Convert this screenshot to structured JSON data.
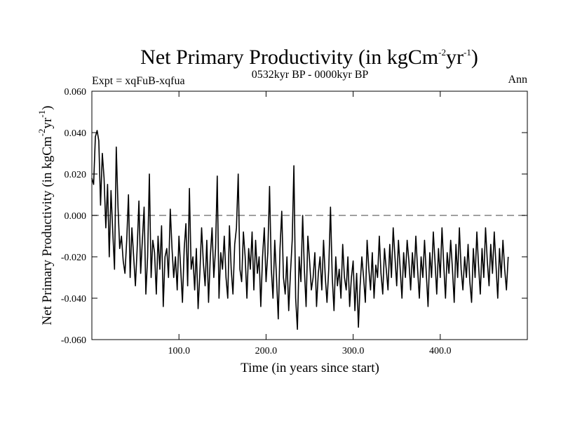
{
  "chart_data": {
    "type": "line",
    "title": {
      "main": "Net Primary Productivity (in kgCm",
      "sup1": "-2",
      "mid": "yr",
      "sup2": "-1",
      "end": ")"
    },
    "left_label": "Expt = xqFuB-xqfua",
    "center_label": "0532kyr BP - 0000kyr BP",
    "right_label": "Ann",
    "xlabel": "Time (in years since start)",
    "ylabel": {
      "main": "Net Primary Productivity (in kgCm",
      "sup1": "-2",
      "mid": "yr",
      "sup2": "-1",
      "end": ")"
    },
    "xlim": [
      0,
      500
    ],
    "ylim": [
      -0.06,
      0.06
    ],
    "xticks": [
      100,
      200,
      300,
      400
    ],
    "xtick_labels": [
      "100.0",
      "200.0",
      "300.0",
      "400.0"
    ],
    "yticks": [
      0.06,
      0.04,
      0.02,
      0.0,
      -0.02,
      -0.04,
      -0.06
    ],
    "ytick_labels": [
      "0.060",
      "0.040",
      "0.020",
      "0.000",
      "-0.020",
      "-0.040",
      "-0.060"
    ],
    "reference_line": 0.0,
    "series": [
      {
        "name": "Net Primary Productivity",
        "x_start": 0,
        "x_step": 2,
        "values": [
          0.018,
          0.015,
          0.038,
          0.041,
          0.036,
          0.005,
          0.03,
          0.018,
          -0.006,
          0.015,
          -0.02,
          0.012,
          -0.008,
          -0.026,
          0.033,
          0.004,
          -0.016,
          -0.01,
          -0.022,
          -0.028,
          -0.012,
          0.01,
          -0.03,
          -0.006,
          -0.02,
          -0.034,
          -0.016,
          0.007,
          -0.028,
          -0.012,
          0.004,
          -0.038,
          -0.02,
          0.02,
          -0.03,
          -0.012,
          -0.018,
          -0.038,
          -0.01,
          -0.026,
          -0.005,
          -0.044,
          -0.02,
          -0.016,
          -0.03,
          0.003,
          -0.016,
          -0.03,
          -0.02,
          -0.036,
          -0.01,
          -0.026,
          -0.042,
          -0.016,
          -0.004,
          -0.034,
          0.013,
          -0.026,
          -0.02,
          -0.036,
          -0.016,
          -0.045,
          -0.028,
          -0.006,
          -0.023,
          -0.034,
          -0.012,
          -0.042,
          -0.02,
          -0.006,
          -0.03,
          -0.016,
          0.019,
          -0.04,
          -0.018,
          -0.026,
          -0.01,
          -0.03,
          -0.04,
          -0.005,
          -0.026,
          -0.038,
          -0.014,
          -0.006,
          0.02,
          -0.026,
          -0.032,
          -0.008,
          -0.02,
          -0.04,
          -0.016,
          -0.026,
          -0.008,
          -0.036,
          -0.012,
          -0.028,
          -0.02,
          -0.044,
          -0.02,
          -0.006,
          -0.032,
          -0.018,
          0.014,
          -0.026,
          -0.04,
          -0.012,
          -0.03,
          -0.05,
          -0.016,
          0.002,
          -0.03,
          -0.038,
          -0.02,
          -0.046,
          -0.028,
          -0.012,
          0.024,
          -0.04,
          -0.055,
          -0.02,
          -0.032,
          0.0,
          -0.026,
          -0.044,
          -0.01,
          -0.022,
          -0.036,
          -0.03,
          -0.018,
          -0.044,
          -0.028,
          -0.02,
          -0.036,
          -0.012,
          -0.03,
          -0.042,
          -0.026,
          0.004,
          -0.03,
          -0.046,
          -0.02,
          -0.034,
          -0.026,
          -0.04,
          -0.014,
          -0.03,
          -0.036,
          -0.02,
          -0.044,
          -0.03,
          -0.022,
          -0.046,
          -0.028,
          -0.054,
          -0.034,
          -0.02,
          -0.03,
          -0.042,
          -0.012,
          -0.026,
          -0.036,
          -0.018,
          -0.04,
          -0.024,
          -0.03,
          -0.01,
          -0.028,
          -0.038,
          -0.016,
          -0.026,
          -0.036,
          -0.014,
          -0.03,
          -0.006,
          -0.02,
          -0.034,
          -0.012,
          -0.026,
          -0.04,
          -0.018,
          -0.03,
          -0.012,
          -0.022,
          -0.036,
          -0.018,
          -0.03,
          -0.01,
          -0.026,
          -0.04,
          -0.02,
          -0.03,
          -0.012,
          -0.028,
          -0.044,
          -0.018,
          -0.03,
          -0.008,
          -0.022,
          -0.038,
          -0.016,
          -0.03,
          -0.006,
          -0.024,
          -0.04,
          -0.018,
          -0.028,
          -0.012,
          -0.026,
          -0.042,
          -0.014,
          -0.03,
          -0.006,
          -0.026,
          -0.036,
          -0.02,
          -0.03,
          -0.014,
          -0.032,
          -0.042,
          -0.016,
          -0.03,
          -0.008,
          -0.024,
          -0.038,
          -0.016,
          -0.03,
          -0.006,
          -0.022,
          -0.034,
          -0.014,
          -0.028,
          -0.008,
          -0.024,
          -0.04,
          -0.016,
          -0.03,
          -0.012,
          -0.026,
          -0.036,
          -0.02
        ]
      }
    ]
  }
}
